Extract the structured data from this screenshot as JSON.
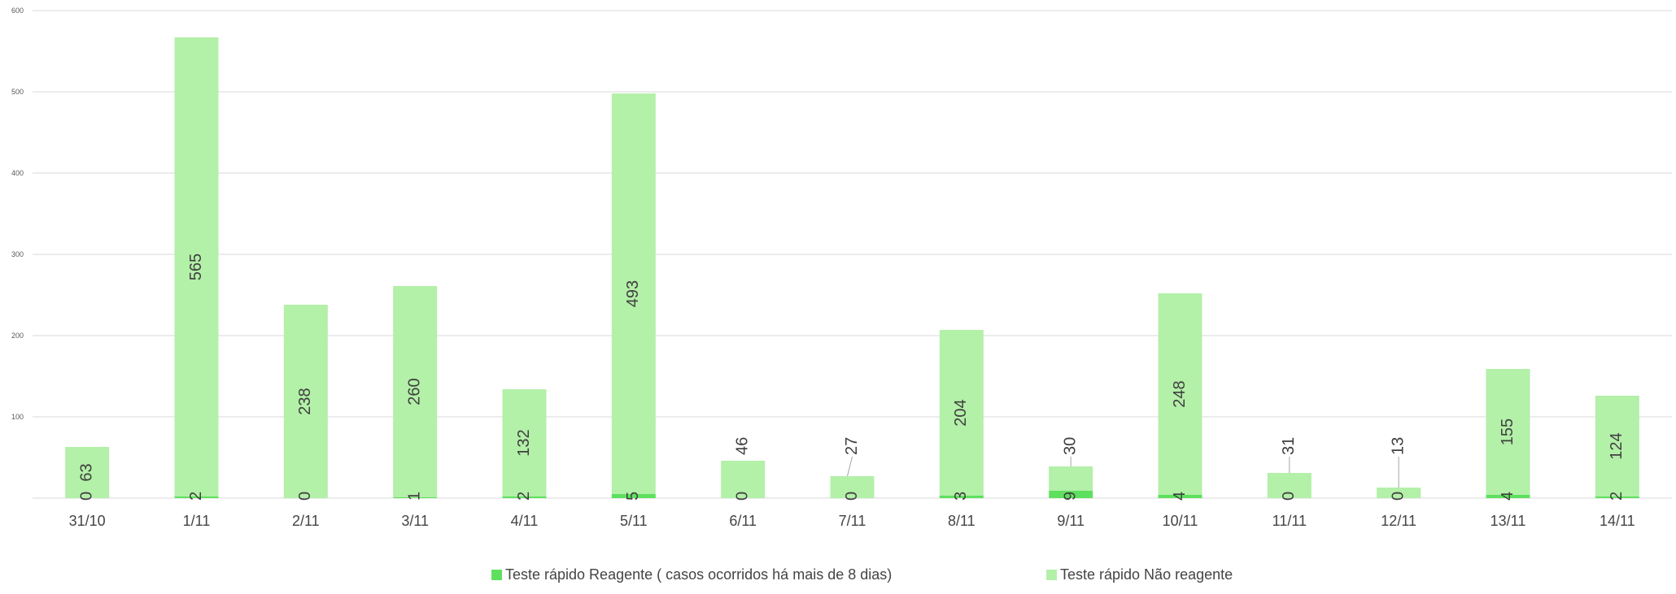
{
  "chart_data": {
    "type": "bar",
    "stacked": true,
    "categories": [
      "31/10",
      "1/11",
      "2/11",
      "3/11",
      "4/11",
      "5/11",
      "6/11",
      "7/11",
      "8/11",
      "9/11",
      "10/11",
      "11/11",
      "12/11",
      "13/11",
      "14/11"
    ],
    "series": [
      {
        "name": "Teste rápido Reagente ( casos ocorridos há mais de 8 dias)",
        "color": "#5ee05e",
        "values": [
          0,
          2,
          0,
          1,
          2,
          5,
          0,
          0,
          3,
          9,
          4,
          0,
          0,
          4,
          2
        ]
      },
      {
        "name": "Teste rápido Não reagente",
        "color": "#b3f0a8",
        "values": [
          63,
          565,
          238,
          260,
          132,
          493,
          46,
          27,
          204,
          30,
          248,
          31,
          13,
          155,
          124
        ]
      }
    ],
    "yticks": [
      "100",
      "200",
      "300",
      "400",
      "500",
      "600"
    ],
    "ylim": [
      0,
      600
    ],
    "grid": true,
    "legend_position": "bottom",
    "title": "",
    "xlabel": "",
    "ylabel": ""
  }
}
